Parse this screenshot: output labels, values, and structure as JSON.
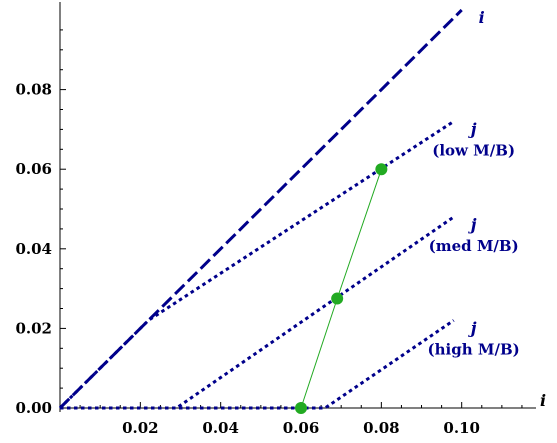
{
  "chart_data": {
    "type": "line",
    "title": "",
    "xlabel": "i",
    "ylabel": "",
    "xlim": [
      0,
      0.1185
    ],
    "ylim": [
      -0.0005,
      0.1
    ],
    "x_ticks": [
      {
        "value": 0.02,
        "label": "0.02"
      },
      {
        "value": 0.04,
        "label": "0.04"
      },
      {
        "value": 0.06,
        "label": "0.06"
      },
      {
        "value": 0.08,
        "label": "0.08"
      },
      {
        "value": 0.1,
        "label": "0.10"
      }
    ],
    "y_ticks": [
      {
        "value": 0.0,
        "label": "0.00"
      },
      {
        "value": 0.02,
        "label": "0.02"
      },
      {
        "value": 0.04,
        "label": "0.04"
      },
      {
        "value": 0.06,
        "label": "0.06"
      },
      {
        "value": 0.08,
        "label": "0.08"
      }
    ],
    "grid": false,
    "series": [
      {
        "style": "dashed",
        "color": "#00008b",
        "points": [
          [
            0,
            0
          ],
          [
            0.1,
            0.1
          ]
        ]
      },
      {
        "style": "dotted",
        "color": "#00008b",
        "points": [
          [
            0,
            0
          ],
          [
            0.022,
            0.022
          ],
          [
            0.098,
            0.072
          ]
        ]
      },
      {
        "style": "dotted",
        "color": "#00008b",
        "points": [
          [
            0,
            0
          ],
          [
            0.029,
            0
          ],
          [
            0.098,
            0.048
          ]
        ]
      },
      {
        "style": "dotted",
        "color": "#00008b",
        "points": [
          [
            0,
            0
          ],
          [
            0.066,
            0
          ],
          [
            0.098,
            0.022
          ]
        ]
      },
      {
        "style": "solid",
        "color": "#22aa22",
        "points": [
          [
            0.06,
            0.0
          ],
          [
            0.069,
            0.0275
          ],
          [
            0.08,
            0.06
          ]
        ]
      }
    ],
    "markers": [
      {
        "x": 0.06,
        "y": 0.0,
        "color": "#22aa22"
      },
      {
        "x": 0.069,
        "y": 0.0275,
        "color": "#22aa22"
      },
      {
        "x": 0.08,
        "y": 0.06,
        "color": "#22aa22"
      }
    ],
    "annotations": [
      {
        "letter": "i",
        "sub": "",
        "x": 0.1,
        "y": 0.1
      },
      {
        "letter": "j",
        "sub": "(low M/B)",
        "x": 0.098,
        "y": 0.072
      },
      {
        "letter": "j",
        "sub": "(med M/B)",
        "x": 0.098,
        "y": 0.048
      },
      {
        "letter": "j",
        "sub": "(high M/B)",
        "x": 0.098,
        "y": 0.022
      }
    ]
  }
}
